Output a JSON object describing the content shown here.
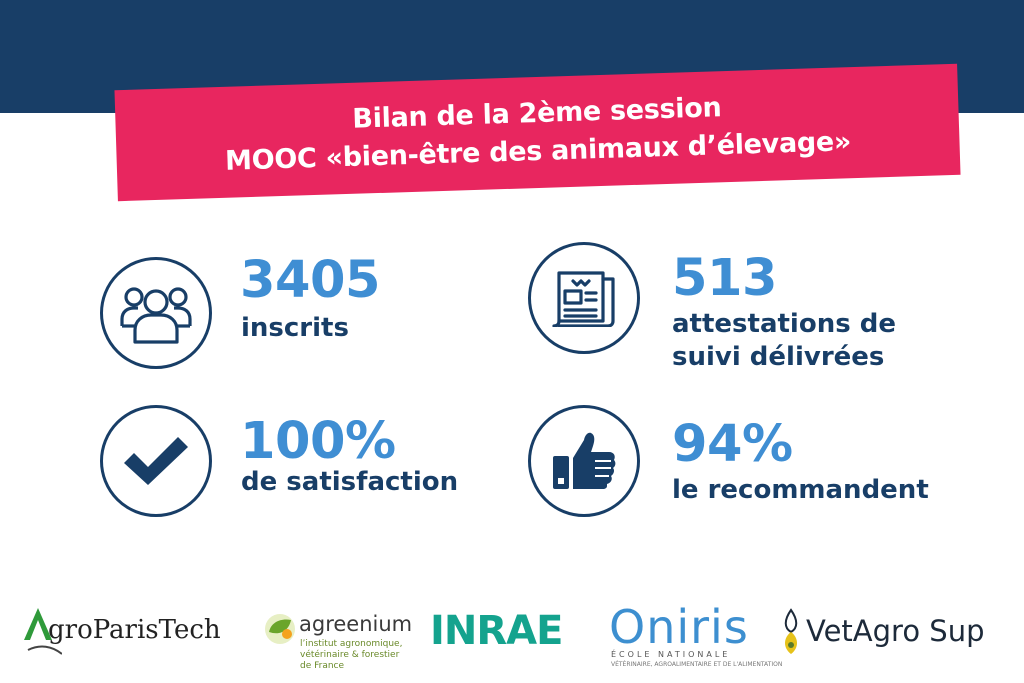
{
  "title": {
    "line1": "Bilan de la 2ème session",
    "line2": "MOOC «bien-être des animaux d’élevage»"
  },
  "stats": [
    {
      "number": "3405",
      "label_lines": [
        "inscrits"
      ],
      "icon": "people-group-icon"
    },
    {
      "number": "513",
      "label_lines": [
        "attestations de",
        "suivi délivrées"
      ],
      "icon": "document-icon"
    },
    {
      "number": "100%",
      "label_lines": [
        "de satisfaction"
      ],
      "icon": "checkmark-icon"
    },
    {
      "number": "94%",
      "label_lines": [
        "le recommandent"
      ],
      "icon": "thumbs-up-icon"
    }
  ],
  "logos": {
    "agroparistech": {
      "A": "A",
      "text": "groParisTech"
    },
    "agreenium": {
      "name": "agreenium",
      "sub1": "l’institut agronomique,",
      "sub2": "vétérinaire & forestier",
      "sub3": "de France"
    },
    "inrae": {
      "text": "INRAE"
    },
    "oniris": {
      "text": "Oniris",
      "sub1": "ÉCOLE NATIONALE",
      "sub2": "VÉTÉRINAIRE, AGROALIMENTAIRE ET DE L'ALIMENTATION"
    },
    "vetagro": {
      "text": "VetAgro",
      "sup": "Sup"
    }
  },
  "colors": {
    "navy": "#183e67",
    "pink": "#e8265f",
    "blue": "#3f8ed3",
    "inrae_green": "#14a38e"
  }
}
